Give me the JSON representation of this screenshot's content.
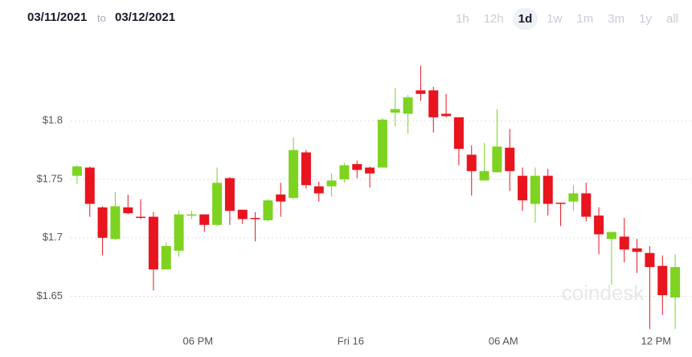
{
  "header": {
    "from": "03/11/2021",
    "to_word": "to",
    "to": "03/12/2021",
    "ranges": [
      "1h",
      "12h",
      "1d",
      "1w",
      "1m",
      "3m",
      "1y",
      "all"
    ],
    "selected": "1d"
  },
  "chart_data": {
    "type": "candlestick",
    "watermark": "coindesk",
    "up_color": "#7ed321",
    "down_color": "#e8141e",
    "categories": [
      null,
      null,
      null,
      null,
      null,
      null,
      null,
      null,
      null,
      null,
      "06 PM",
      null,
      null,
      null,
      null,
      null,
      null,
      null,
      null,
      null,
      null,
      null,
      "Fri 16",
      null,
      null,
      null,
      null,
      null,
      null,
      null,
      null,
      null,
      null,
      null,
      "06 AM",
      null,
      null,
      null,
      null,
      null,
      null,
      null,
      null,
      null,
      null,
      null,
      "12 PM",
      null
    ],
    "open": [
      1.753,
      1.76,
      1.726,
      1.699,
      1.726,
      1.718,
      1.718,
      1.673,
      1.689,
      1.719,
      1.72,
      1.711,
      1.751,
      1.724,
      1.717,
      1.715,
      1.737,
      1.734,
      1.773,
      1.744,
      1.744,
      1.75,
      1.763,
      1.76,
      1.76,
      1.807,
      1.806,
      1.826,
      1.826,
      1.806,
      1.803,
      1.771,
      1.749,
      1.756,
      1.777,
      1.753,
      1.729,
      1.753,
      1.73,
      1.731,
      1.738,
      1.719,
      1.699,
      1.701,
      1.691,
      1.687,
      1.676,
      1.649
    ],
    "high": [
      1.762,
      1.761,
      1.727,
      1.739,
      1.737,
      1.733,
      1.722,
      1.696,
      1.723,
      1.723,
      1.72,
      1.76,
      1.752,
      1.724,
      1.722,
      1.733,
      1.747,
      1.786,
      1.775,
      1.748,
      1.755,
      1.764,
      1.766,
      1.761,
      1.802,
      1.828,
      1.822,
      1.847,
      1.829,
      1.823,
      1.803,
      1.779,
      1.781,
      1.81,
      1.793,
      1.76,
      1.76,
      1.759,
      1.73,
      1.745,
      1.747,
      1.726,
      1.705,
      1.717,
      1.699,
      1.693,
      1.685,
      1.686
    ],
    "low": [
      1.746,
      1.718,
      1.685,
      1.698,
      1.72,
      1.716,
      1.655,
      1.673,
      1.684,
      1.716,
      1.705,
      1.71,
      1.711,
      1.712,
      1.697,
      1.714,
      1.718,
      1.733,
      1.742,
      1.731,
      1.735,
      1.747,
      1.751,
      1.743,
      1.76,
      1.795,
      1.789,
      1.817,
      1.79,
      1.803,
      1.762,
      1.736,
      1.749,
      1.756,
      1.74,
      1.723,
      1.713,
      1.719,
      1.71,
      1.723,
      1.714,
      1.686,
      1.66,
      1.679,
      1.67,
      1.622,
      1.634,
      1.622
    ],
    "close": [
      1.761,
      1.729,
      1.7,
      1.727,
      1.721,
      1.717,
      1.673,
      1.693,
      1.72,
      1.72,
      1.711,
      1.747,
      1.723,
      1.716,
      1.716,
      1.732,
      1.731,
      1.775,
      1.745,
      1.738,
      1.749,
      1.762,
      1.758,
      1.755,
      1.801,
      1.81,
      1.82,
      1.823,
      1.803,
      1.804,
      1.776,
      1.757,
      1.757,
      1.778,
      1.757,
      1.732,
      1.753,
      1.729,
      1.729,
      1.738,
      1.718,
      1.703,
      1.705,
      1.69,
      1.688,
      1.675,
      1.651,
      1.675
    ],
    "ylim": [
      1.616,
      1.862
    ],
    "yticks": [
      {
        "value": 1.65,
        "label": "$1.65"
      },
      {
        "value": 1.7,
        "label": "$1.7"
      },
      {
        "value": 1.75,
        "label": "$1.75"
      },
      {
        "value": 1.8,
        "label": "$1.8"
      }
    ],
    "grid": true
  }
}
